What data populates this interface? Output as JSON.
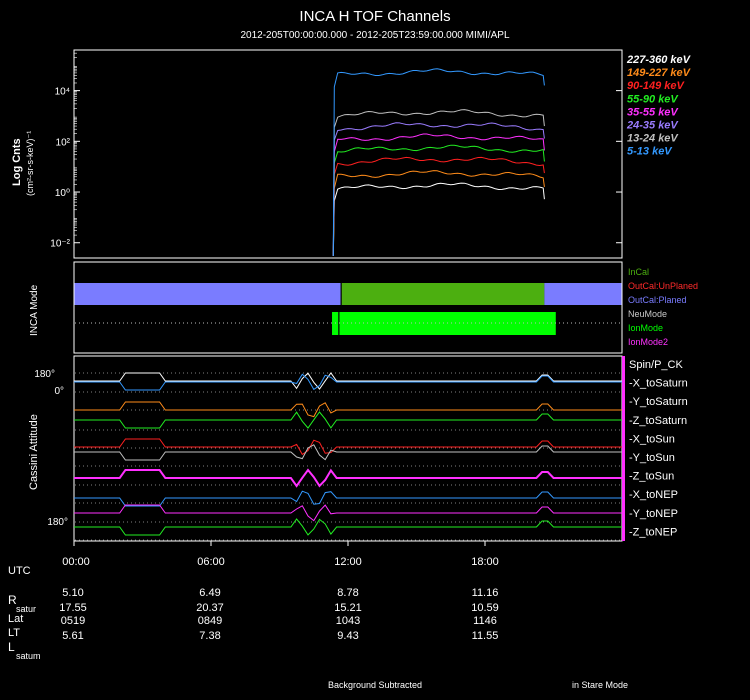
{
  "title": "INCA H TOF Channels",
  "subtitle": "2012-205T00:00:00.000 - 2012-205T23:59:00.000 MIMI/APL",
  "footer": {
    "left": "Background Subtracted",
    "right": "in Stare Mode"
  },
  "colors": {
    "ch_227_360": "#ffffff",
    "ch_149_227": "#ff8c1a",
    "ch_90_149": "#ff2020",
    "ch_55_90": "#22ee22",
    "ch_35_55": "#ff30ff",
    "ch_24_35": "#9a7cff",
    "ch_13_24": "#c0c0c0",
    "ch_5_13": "#3399ff",
    "incal": "#4caf10",
    "outcal_unplaned": "#ff2a2a",
    "outcal_planed": "#7a7cff",
    "neumode": "#c8c8c8",
    "ionmode": "#00ff00",
    "ionmode2": "#ff33ff"
  },
  "chart_data": [
    {
      "type": "line",
      "ylabel": "Log Cnts",
      "yunits_label": "(cm²-sr-s-keV)⁻¹",
      "yscale": "log",
      "ylim": [
        0.0025,
        400000
      ],
      "yticks": [
        {
          "value": 0.01,
          "label": "10⁻²"
        },
        {
          "value": 1,
          "label": "10⁰"
        },
        {
          "value": 100,
          "label": "10²"
        },
        {
          "value": 10000,
          "label": "10⁴"
        }
      ],
      "xlim_hours": [
        0,
        24
      ],
      "data_start_hour": 11.4,
      "data_end_hour": 20.6,
      "series": [
        {
          "name": "227-360 keV",
          "color": "#ffffff",
          "level": 1.3
        },
        {
          "name": "149-227 keV",
          "color": "#ff8c1a",
          "level": 4
        },
        {
          "name": "90-149 keV",
          "color": "#ff2020",
          "level": 14
        },
        {
          "name": "55-90 keV",
          "color": "#22ee22",
          "level": 40
        },
        {
          "name": "35-55 keV",
          "color": "#ff30ff",
          "level": 110
        },
        {
          "name": "24-35 keV",
          "color": "#9a7cff",
          "level": 320
        },
        {
          "name": "13-24 keV",
          "color": "#c0c0c0",
          "level": 1000
        },
        {
          "name": "5-13 keV",
          "color": "#3399ff",
          "level": 40000
        }
      ]
    },
    {
      "type": "heatmap",
      "ylabel": "INCA Mode",
      "legend": [
        "InCal",
        "OutCal:UnPlaned",
        "OutCal:Planed",
        "NeuMode",
        "IonMode",
        "IonMode2"
      ],
      "rows": [
        {
          "row": "cal",
          "segments": [
            {
              "label": "OutCal:Planed",
              "start_hour": 0,
              "end_hour": 11.7,
              "color": "#7a7cff"
            },
            {
              "label": "InCal",
              "start_hour": 11.7,
              "end_hour": 20.6,
              "color": "#4caf10"
            },
            {
              "label": "OutCal:Planed",
              "start_hour": 20.6,
              "end_hour": 24,
              "color": "#7a7cff"
            }
          ]
        },
        {
          "row": "mode",
          "segments": [
            {
              "label": "IonMode",
              "start_hour": 11.3,
              "end_hour": 21.1,
              "color": "#00ff00"
            }
          ]
        }
      ]
    },
    {
      "type": "line",
      "ylabel": "Cassini Attitude",
      "ytick_labels": [
        "180°",
        "0°",
        "180°"
      ],
      "legend": [
        "Spin/P_CK",
        "-X_toSaturn",
        "-Y_toSaturn",
        "-Z_toSaturn",
        "-X_toSun",
        "-Y_toSun",
        "-Z_toSun",
        "-X_toNEP",
        "-Y_toNEP",
        "-Z_toNEP"
      ]
    }
  ],
  "xaxis": {
    "ticks": [
      "00:00",
      "06:00",
      "12:00",
      "18:00"
    ],
    "tick_hours": [
      0,
      6,
      12,
      18
    ]
  },
  "ephemeris": {
    "labels": {
      "utc": "UTC",
      "r": "R",
      "r_sub": "satur",
      "lat": "Lat",
      "lt": "LT",
      "l": "L",
      "l_sub": "satum"
    },
    "columns": [
      {
        "r": "5.10",
        "lat": "17.55",
        "lt": "0519",
        "l": "5.61"
      },
      {
        "r": "6.49",
        "lat": "20.37",
        "lt": "0849",
        "l": "7.38"
      },
      {
        "r": "8.78",
        "lat": "15.21",
        "lt": "1043",
        "l": "9.43"
      },
      {
        "r": "11.16",
        "lat": "10.59",
        "lt": "1146",
        "l": "11.55"
      }
    ]
  }
}
